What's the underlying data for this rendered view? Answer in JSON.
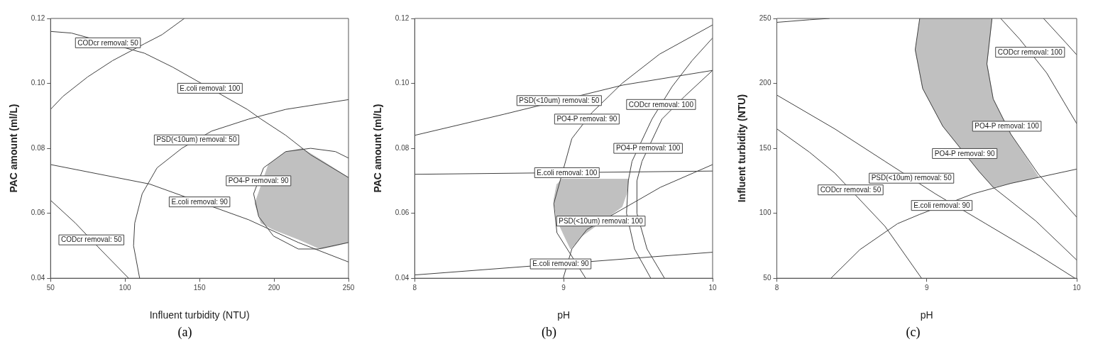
{
  "chart_data": [
    {
      "type": "line",
      "xlabel": "Influent turbidity (NTU)",
      "ylabel": "PAC amount (ml/L)",
      "marker": "none",
      "xlim": [
        50,
        250
      ],
      "ylim": [
        0.04,
        0.12
      ],
      "xticks": [
        50,
        100,
        150,
        200,
        250
      ],
      "yticks": [
        {
          "value": 0.04,
          "label": "0.04"
        },
        {
          "value": 0.06,
          "label": "0.06"
        },
        {
          "value": 0.08,
          "label": "0.08"
        },
        {
          "value": 0.1,
          "label": "0.10"
        },
        {
          "value": 0.12,
          "label": "0.12"
        }
      ],
      "series": [
        {
          "type": "area",
          "color": "#c0c0c0",
          "x": [
            218.7,
            232.9,
            250,
            250,
            241.2,
            231.2,
            216.3,
            199.6,
            191.3,
            187.2,
            196.3,
            207.9
          ],
          "values": [
            0.08,
            0.076,
            0.071,
            0.051,
            0.05,
            0.049,
            0.052,
            0.055,
            0.057,
            0.063,
            0.075,
            0.079
          ]
        },
        {
          "color": "#404040",
          "x": [
            50,
            64,
            113,
            132,
            182,
            191.3,
            207.9,
            224.6,
            250
          ],
          "values": [
            0.116,
            0.1155,
            0.1093,
            0.105,
            0.092,
            0.089,
            0.084,
            0.078,
            0.071
          ]
        },
        {
          "color": "#404040",
          "x": [
            50,
            58.3,
            74.9,
            91.6,
            113,
            124.8,
            139.8
          ],
          "values": [
            0.092,
            0.096,
            0.102,
            0.107,
            0.1122,
            0.115,
            0.12
          ]
        },
        {
          "color": "#404040",
          "x": [
            109.8,
            105.7,
            106.5,
            111.5,
            121.5,
            138.1,
            158.1,
            183,
            207.9,
            250
          ],
          "values": [
            0.04,
            0.05,
            0.057,
            0.066,
            0.074,
            0.08,
            0.0853,
            0.089,
            0.092,
            0.095
          ]
        },
        {
          "color": "#404040",
          "x": [
            250,
            241.2,
            224.6,
            207.9,
            193,
            186.3,
            189.7,
            199.6,
            216.3,
            229.6,
            250
          ],
          "values": [
            0.077,
            0.079,
            0.08,
            0.079,
            0.074,
            0.066,
            0.059,
            0.053,
            0.049,
            0.049,
            0.051
          ]
        },
        {
          "color": "#404040",
          "x": [
            50,
            83.2,
            116.5,
            183,
            216.3,
            250
          ],
          "values": [
            0.075,
            0.072,
            0.069,
            0.058,
            0.051,
            0.045
          ]
        },
        {
          "color": "#404040",
          "x": [
            50,
            66.6,
            83.2,
            102.4
          ],
          "values": [
            0.064,
            0.057,
            0.049,
            0.04
          ]
        }
      ],
      "annotations": [
        {
          "text": "CODcr removal: 50",
          "x": 88.5,
          "y": 0.1125
        },
        {
          "text": "E.coli removal: 100",
          "x": 157,
          "y": 0.0985
        },
        {
          "text": "PSD(<10um) removal: 50",
          "x": 148,
          "y": 0.0826
        },
        {
          "text": "PO4-P removal: 90",
          "x": 189.6,
          "y": 0.07
        },
        {
          "text": "E.coli removal: 90",
          "x": 150,
          "y": 0.0635
        },
        {
          "text": "CODcr removal: 50",
          "x": 77.4,
          "y": 0.0518
        },
        "(a)"
      ]
    },
    {
      "type": "line",
      "xlabel": "pH",
      "ylabel": "PAC amount (ml/L)",
      "marker": "none",
      "xlim": [
        8,
        10
      ],
      "ylim": [
        0.04,
        0.12
      ],
      "xticks": [
        8,
        9,
        10
      ],
      "yticks": [
        {
          "value": 0.04,
          "label": "0.04"
        },
        {
          "value": 0.06,
          "label": "0.06"
        },
        {
          "value": 0.08,
          "label": "0.08"
        },
        {
          "value": 0.1,
          "label": "0.10"
        },
        {
          "value": 0.12,
          "label": "0.12"
        }
      ],
      "series": [
        {
          "type": "area",
          "color": "#c0c0c0",
          "x": [
            8.985,
            9.437,
            9.422,
            9.392,
            9.123,
            9.047,
            9.005,
            8.955,
            8.934,
            8.955
          ],
          "values": [
            0.0705,
            0.0705,
            0.066,
            0.062,
            0.053,
            0.049,
            0.053,
            0.058,
            0.064,
            0.069
          ]
        },
        {
          "color": "#404040",
          "x": [
            8,
            8.6,
            9.4,
            10
          ],
          "values": [
            0.084,
            0.0905,
            0.0995,
            0.104
          ]
        },
        {
          "color": "#404040",
          "x": [
            8,
            10
          ],
          "values": [
            0.072,
            0.073
          ]
        },
        {
          "color": "#404040",
          "x": [
            8,
            10
          ],
          "values": [
            0.041,
            0.048
          ]
        },
        {
          "color": "#404040",
          "x": [
            9.148,
            8.955,
            8.934,
            9.055,
            9.19,
            9.392,
            9.644,
            10
          ],
          "values": [
            0.04,
            0.054,
            0.063,
            0.083,
            0.091,
            0.1,
            0.109,
            0.118
          ]
        },
        {
          "color": "#404040",
          "x": [
            8.997,
            9.055,
            9.156,
            9.65,
            10
          ],
          "values": [
            0.04,
            0.049,
            0.055,
            0.068,
            0.075
          ]
        },
        {
          "color": "#404040",
          "x": [
            9.585,
            9.476,
            9.422,
            9.434,
            9.459,
            9.593,
            9.728,
            9.862,
            10
          ],
          "values": [
            0.04,
            0.049,
            0.06,
            0.07,
            0.076,
            0.089,
            0.099,
            0.107,
            0.114
          ]
        },
        {
          "color": "#404040",
          "x": [
            9.677,
            9.56,
            9.492,
            9.492,
            9.526,
            9.66,
            9.812,
            10
          ],
          "values": [
            0.04,
            0.049,
            0.06,
            0.07,
            0.076,
            0.089,
            0.096,
            0.104
          ]
        }
      ],
      "annotations": [
        {
          "text": "PSD(<10um) removal: 50",
          "x": 8.97,
          "y": 0.0947
        },
        {
          "text": "CODcr removal: 100",
          "x": 9.654,
          "y": 0.0935
        },
        {
          "text": "PO4-P removal: 90",
          "x": 9.156,
          "y": 0.089
        },
        {
          "text": "PO4-P removal: 100",
          "x": 9.567,
          "y": 0.08
        },
        {
          "text": "E.coli removal: 100",
          "x": 9.022,
          "y": 0.0725
        },
        {
          "text": "PSD(<10um) removal: 100",
          "x": 9.25,
          "y": 0.0576
        },
        {
          "text": "E.coli removal: 90",
          "x": 8.98,
          "y": 0.0444
        },
        "(b)"
      ]
    },
    {
      "type": "line",
      "xlabel": "pH",
      "ylabel": "Influent turbidity (NTU)",
      "marker": "none",
      "xlim": [
        8,
        10
      ],
      "ylim": [
        50,
        250
      ],
      "xticks": [
        8,
        9,
        10
      ],
      "yticks": [
        50,
        100,
        150,
        200,
        250
      ],
      "series": [
        {
          "type": "area",
          "color": "#c0c0c0",
          "x": [
            8.953,
            9.435,
            9.401,
            9.443,
            9.56,
            9.745,
            9.594,
            9.443,
            9.35,
            9.107,
            8.973,
            8.923
          ],
          "values": [
            250,
            250,
            215,
            188,
            161,
            128,
            124,
            120,
            132,
            167,
            196,
            226
          ]
        },
        {
          "color": "#404040",
          "x": [
            8,
            8.218,
            8.352
          ],
          "values": [
            247,
            249,
            250
          ]
        },
        {
          "color": "#404040",
          "x": [
            8,
            8.386,
            8.721,
            9.057,
            9.393,
            9.728,
            9.988
          ],
          "values": [
            191,
            165,
            140,
            115,
            92,
            69,
            50
          ]
        },
        {
          "color": "#404040",
          "x": [
            8,
            8.218,
            8.386,
            8.721,
            8.965
          ],
          "values": [
            165,
            147,
            131,
            90,
            50
          ]
        },
        {
          "color": "#404040",
          "x": [
            8.361,
            8.554,
            8.805,
            8.95,
            9.309,
            9.56,
            10
          ],
          "values": [
            50,
            72,
            92,
            99,
            115,
            123,
            134
          ]
        },
        {
          "color": "#404040",
          "x": [
            8.953,
            8.923,
            8.973,
            9.107,
            9.35,
            9.443,
            9.728,
            10
          ],
          "values": [
            250,
            226,
            196,
            167,
            132,
            120,
            94,
            64
          ]
        },
        {
          "color": "#404040",
          "x": [
            9.435,
            9.401,
            9.443,
            9.56,
            9.745,
            10
          ],
          "values": [
            250,
            215,
            188,
            161,
            130,
            97
          ]
        },
        {
          "color": "#404040",
          "x": [
            9.493,
            9.62,
            9.8,
            10
          ],
          "values": [
            250,
            234,
            208,
            169
          ]
        },
        {
          "color": "#404040",
          "x": [
            9.779,
            9.93,
            10
          ],
          "values": [
            250,
            231,
            222
          ]
        }
      ],
      "annotations": [
        {
          "text": "CODcr removal: 100",
          "x": 9.689,
          "y": 224
        },
        {
          "text": "PO4-P removal: 100",
          "x": 9.534,
          "y": 167
        },
        {
          "text": "PO4-P removal: 90",
          "x": 9.253,
          "y": 146
        },
        {
          "text": "PSD(<10um) removal: 50",
          "x": 8.898,
          "y": 127
        },
        {
          "text": "CODcr removal: 50",
          "x": 8.492,
          "y": 118
        },
        {
          "text": "E.coli removal: 90",
          "x": 9.1,
          "y": 106
        },
        "(c)"
      ]
    }
  ]
}
